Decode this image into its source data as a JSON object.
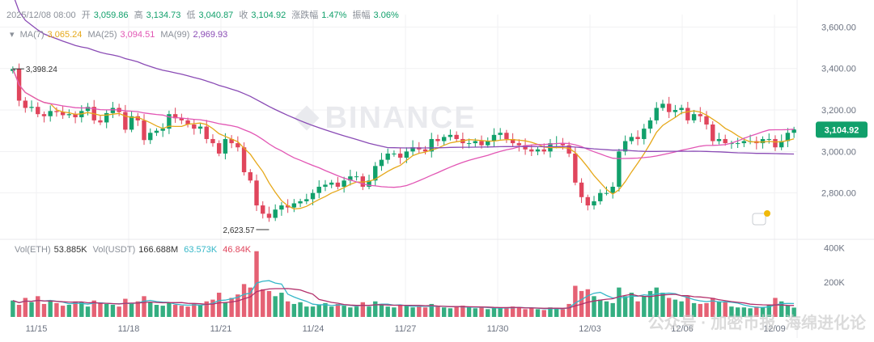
{
  "header": {
    "datetime": "2025/12/08 08:00",
    "open_label": "开",
    "open": "3,059.86",
    "high_label": "高",
    "high": "3,134.73",
    "low_label": "低",
    "low": "3,040.87",
    "close_label": "收",
    "close": "3,104.92",
    "change_label": "涨跌幅",
    "change": "1.47%",
    "amplitude_label": "振幅",
    "amplitude": "3.06%"
  },
  "ma_legend": {
    "ma7_label": "MA(7)",
    "ma7": "3,065.24",
    "ma25_label": "MA(25)",
    "ma25": "3,094.51",
    "ma99_label": "MA(99)",
    "ma99": "2,969.93"
  },
  "vol_legend": {
    "eth_label": "Vol(ETH)",
    "eth": "53.885K",
    "usdt_label": "Vol(USDT)",
    "usdt": "166.688M",
    "ma_a": "63.573K",
    "ma_b": "46.84K"
  },
  "price_marks": {
    "high_mark": "3,398.24",
    "low_mark": "2,623.57",
    "current_price": "3,104.92"
  },
  "watermark": {
    "bg_logo": "BINANCE",
    "overlay": "公众号 · 加密币报",
    "overlay2": "海绵进化论"
  },
  "colors": {
    "up": "#11a06b",
    "down": "#e0455c",
    "ma7": "#e6a81a",
    "ma25": "#e256b4",
    "ma99": "#8a4bb5",
    "vol_ma_a": "#35b7c8",
    "vol_ma_b": "#b3306b"
  },
  "chart_data": {
    "type": "candlestick",
    "interval": "8h",
    "x_ticks": [
      "11/15",
      "11/18",
      "11/21",
      "11/24",
      "11/27",
      "11/30",
      "12/03",
      "12/06",
      "12/09"
    ],
    "y_ticks": [
      "3,600.00",
      "3,400.00",
      "3,200.00",
      "3,000.00",
      "2,800.00"
    ],
    "ylim": [
      2600,
      3660
    ],
    "vol_ticks": [
      "400K",
      "200K"
    ],
    "vol_ylim": [
      0,
      430000
    ],
    "closes": [
      3398,
      3245,
      3210,
      3215,
      3180,
      3170,
      3195,
      3190,
      3175,
      3180,
      3165,
      3195,
      3215,
      3150,
      3140,
      3185,
      3210,
      3190,
      3105,
      3170,
      3150,
      3055,
      3090,
      3100,
      3110,
      3180,
      3160,
      3150,
      3130,
      3110,
      3120,
      3060,
      3040,
      2990,
      3060,
      3040,
      3020,
      2900,
      2860,
      2740,
      2700,
      2680,
      2720,
      2740,
      2730,
      2750,
      2760,
      2770,
      2800,
      2830,
      2840,
      2850,
      2830,
      2860,
      2880,
      2880,
      2830,
      2860,
      2930,
      2960,
      2990,
      2990,
      2970,
      3000,
      3020,
      3010,
      3000,
      3060,
      3050,
      3070,
      3080,
      3060,
      3040,
      3040,
      3050,
      3030,
      3050,
      3080,
      3090,
      3060,
      3040,
      3030,
      3010,
      3000,
      3010,
      3000,
      3040,
      3040,
      3030,
      2990,
      2850,
      2780,
      2740,
      2760,
      2800,
      2800,
      2830,
      3000,
      3050,
      3070,
      3060,
      3110,
      3150,
      3210,
      3230,
      3190,
      3200,
      3210,
      3150,
      3180,
      3170,
      3130,
      3050,
      3060,
      3040,
      3040,
      3040,
      3050,
      3050,
      3040,
      3060,
      3060,
      3020,
      3050,
      3090,
      3105
    ],
    "volumes": [
      95000,
      70000,
      110000,
      85000,
      120000,
      75000,
      90000,
      80000,
      65000,
      70000,
      90000,
      85000,
      60000,
      95000,
      80000,
      75000,
      70000,
      60000,
      105000,
      80000,
      90000,
      120000,
      85000,
      70000,
      65000,
      80000,
      70000,
      65000,
      60000,
      75000,
      70000,
      90000,
      100000,
      140000,
      85000,
      110000,
      130000,
      190000,
      170000,
      380000,
      160000,
      150000,
      120000,
      140000,
      90000,
      75000,
      85000,
      60000,
      60000,
      70000,
      80000,
      60000,
      75000,
      65000,
      55000,
      60000,
      85000,
      60000,
      90000,
      75000,
      60000,
      55000,
      70000,
      65000,
      55000,
      60000,
      55000,
      75000,
      60000,
      55000,
      50000,
      60000,
      65000,
      55000,
      50000,
      55000,
      45000,
      55000,
      50000,
      55000,
      60000,
      55000,
      45000,
      50000,
      45000,
      40000,
      55000,
      50000,
      45000,
      75000,
      180000,
      150000,
      160000,
      120000,
      100000,
      90000,
      80000,
      170000,
      120000,
      140000,
      90000,
      120000,
      150000,
      170000,
      140000,
      110000,
      100000,
      90000,
      120000,
      80000,
      75000,
      80000,
      110000,
      90000,
      85000,
      60000,
      55000,
      55000,
      50000,
      60000,
      55000,
      70000,
      110000,
      90000,
      65000,
      54000
    ]
  }
}
